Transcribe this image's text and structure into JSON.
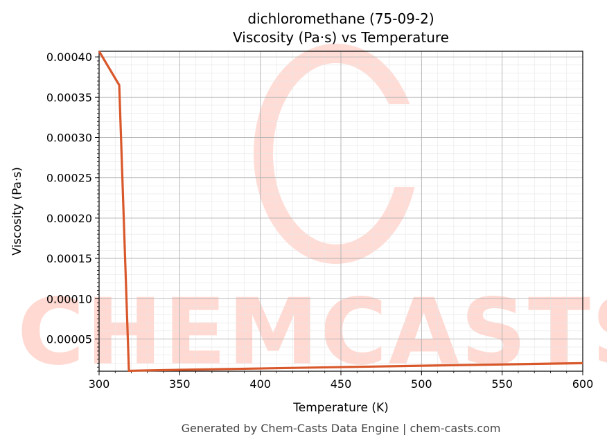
{
  "chart_data": {
    "type": "line",
    "title": "dichloromethane (75-09-2)",
    "subtitle": "Viscosity (Pa·s) vs Temperature",
    "xlabel": "Temperature (K)",
    "ylabel": "Viscosity (Pa·s)",
    "xlim": [
      300,
      600
    ],
    "ylim": [
      1e-05,
      0.000407
    ],
    "x_ticks": [
      300,
      350,
      400,
      450,
      500,
      550,
      600
    ],
    "x_tick_labels": [
      "300",
      "350",
      "400",
      "450",
      "500",
      "550",
      "600"
    ],
    "y_ticks": [
      5e-05,
      0.0001,
      0.00015,
      0.0002,
      0.00025,
      0.0003,
      0.00035,
      0.0004
    ],
    "y_tick_labels": [
      "0.00005",
      "0.00010",
      "0.00015",
      "0.00020",
      "0.00025",
      "0.00030",
      "0.00035",
      "0.00040"
    ],
    "grid": true,
    "series": [
      {
        "color": "#d9582b",
        "x": [
          300,
          312.5,
          318.5,
          325,
          350,
          400,
          450,
          500,
          550,
          600
        ],
        "y": [
          0.000407,
          0.000365,
          1.05e-05,
          1.08e-05,
          1.17e-05,
          1.34e-05,
          1.51e-05,
          1.68e-05,
          1.84e-05,
          2e-05
        ]
      }
    ]
  },
  "watermark": {
    "text": "CHEMCASTS"
  },
  "footer": "Generated by Chem-Casts Data Engine | chem-casts.com"
}
